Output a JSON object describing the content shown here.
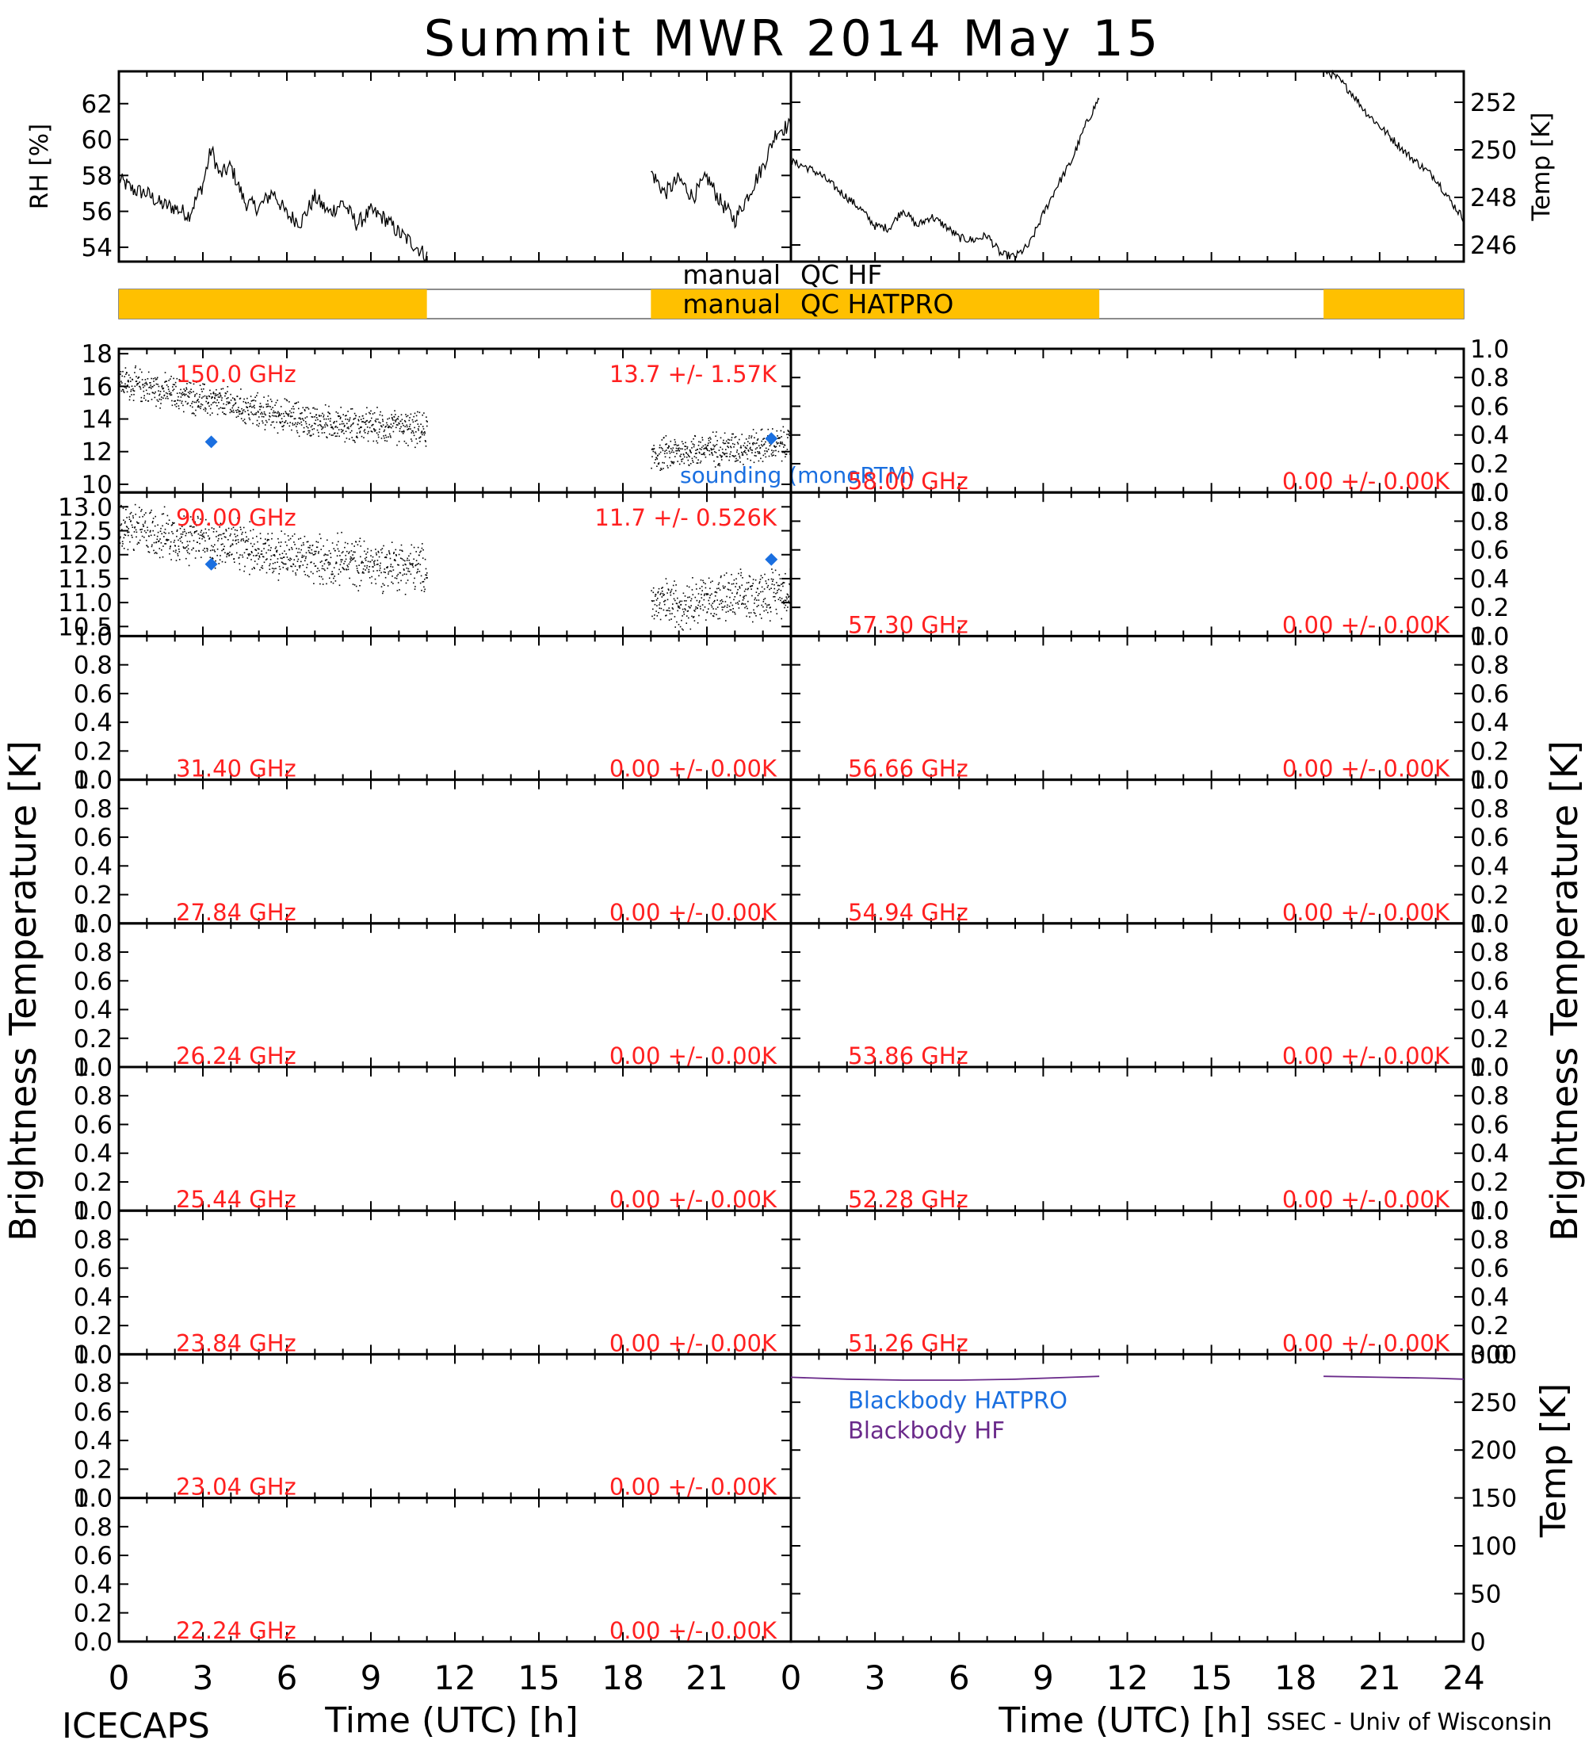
{
  "title": "Summit MWR 2014 May 15",
  "footer": {
    "left": "ICECAPS",
    "right": "SSEC - Univ of Wisconsin"
  },
  "qc": {
    "hf_label": "manual QC HF",
    "hatpro_label": "manual QC HATPRO",
    "color": "#FFC000"
  },
  "colors": {
    "trace": "#000000",
    "label": "#ff2020",
    "sounding": "#1a6fe0",
    "bb_hatpro": "#1a6fe0",
    "bb_hf": "#6a2a8a"
  },
  "chart_data": [
    {
      "type": "line",
      "panel": "rh",
      "ylabel": "RH [%]",
      "xlim": [
        0,
        24
      ],
      "ylim": [
        53.2,
        63.8
      ],
      "yticks": [
        "54",
        "56",
        "58",
        "60",
        "62"
      ],
      "x": [
        0,
        0.5,
        1,
        1.5,
        2,
        2.5,
        3,
        3.3,
        3.6,
        4,
        4.5,
        5,
        5.5,
        6,
        6.5,
        7,
        7.5,
        8,
        8.5,
        9,
        9.5,
        10,
        10.5,
        11,
        19,
        19.5,
        20,
        20.5,
        21,
        21.5,
        22,
        22.5,
        23,
        23.5,
        24
      ],
      "values": [
        57.8,
        57.2,
        57.0,
        56.4,
        56.2,
        55.8,
        57.5,
        59.5,
        58.0,
        58.5,
        56.5,
        56.2,
        57.1,
        55.8,
        55.4,
        56.8,
        55.9,
        56.5,
        55.3,
        56.0,
        55.6,
        54.8,
        54.2,
        53.5,
        58.2,
        57.0,
        57.8,
        56.8,
        57.9,
        56.5,
        55.5,
        57.0,
        58.5,
        60.5,
        60.8
      ]
    },
    {
      "type": "line",
      "panel": "temp",
      "ylabel": "Temp [K]",
      "xlim": [
        0,
        24
      ],
      "ylim": [
        245.3,
        253.3
      ],
      "yticks": [
        "246",
        "248",
        "250",
        "252"
      ],
      "x": [
        0,
        0.5,
        1,
        1.5,
        2,
        2.5,
        3,
        3.5,
        4,
        4.5,
        5,
        5.5,
        6,
        6.5,
        7,
        7.5,
        8,
        8.5,
        9,
        9.5,
        10,
        10.5,
        11,
        19,
        19.5,
        20,
        20.5,
        21,
        21.5,
        22,
        22.5,
        23,
        23.5,
        24
      ],
      "values": [
        249.5,
        249.3,
        249.0,
        248.5,
        248.0,
        247.5,
        246.8,
        246.7,
        247.5,
        246.8,
        247.2,
        246.8,
        246.3,
        246.2,
        246.4,
        245.6,
        245.5,
        246.0,
        247.3,
        248.5,
        249.5,
        251.0,
        252.2,
        253.4,
        253.0,
        252.4,
        251.6,
        251.0,
        250.4,
        249.8,
        249.3,
        248.8,
        247.9,
        247.1
      ]
    },
    {
      "type": "scatter",
      "panel": "left-1",
      "freq": "150.0 GHz",
      "stats": "13.7 +/-  1.57K",
      "annotation": "sounding (monoRTM)",
      "ylim": [
        9.5,
        18.3
      ],
      "yticks": [
        "10",
        "12",
        "14",
        "16",
        "18"
      ],
      "x": [
        0,
        1,
        2,
        3,
        4,
        5,
        6,
        7,
        8,
        9,
        10,
        11,
        19,
        20,
        21,
        22,
        23,
        24
      ],
      "values": [
        16.3,
        16.0,
        15.6,
        15.2,
        14.9,
        14.5,
        14.2,
        13.9,
        13.7,
        13.6,
        13.5,
        13.3,
        11.8,
        12.0,
        12.2,
        12.3,
        12.4,
        12.5
      ],
      "noise": 0.9,
      "sounding": {
        "x": [
          3.3,
          23.3
        ],
        "values": [
          12.6,
          12.8
        ]
      }
    },
    {
      "type": "scatter",
      "panel": "left-2",
      "freq": "90.00 GHz",
      "stats": "11.7 +/- 0.526K",
      "ylim": [
        10.3,
        13.3
      ],
      "yticks": [
        "10.5",
        "11.0",
        "11.5",
        "12.0",
        "12.5",
        "13.0"
      ],
      "x": [
        0,
        1,
        2,
        3,
        4,
        5,
        6,
        7,
        8,
        9,
        10,
        11,
        19,
        20,
        21,
        22,
        23,
        24
      ],
      "values": [
        12.6,
        12.5,
        12.4,
        12.3,
        12.2,
        12.1,
        12.0,
        11.9,
        11.9,
        11.8,
        11.8,
        11.7,
        11.0,
        11.0,
        11.1,
        11.1,
        11.2,
        11.3
      ],
      "noise": 0.45,
      "sounding": {
        "x": [
          3.3,
          23.3
        ],
        "values": [
          11.8,
          11.9
        ]
      }
    },
    {
      "panel": "left-3",
      "freq": "31.40 GHz",
      "stats": "0.00 +/-  0.00K"
    },
    {
      "panel": "left-4",
      "freq": "27.84 GHz",
      "stats": "0.00 +/-  0.00K"
    },
    {
      "panel": "left-5",
      "freq": "26.24 GHz",
      "stats": "0.00 +/-  0.00K"
    },
    {
      "panel": "left-6",
      "freq": "25.44 GHz",
      "stats": "0.00 +/-  0.00K"
    },
    {
      "panel": "left-7",
      "freq": "23.84 GHz",
      "stats": "0.00 +/-  0.00K"
    },
    {
      "panel": "left-8",
      "freq": "23.04 GHz",
      "stats": "0.00 +/-  0.00K"
    },
    {
      "panel": "left-9",
      "freq": "22.24 GHz",
      "stats": "0.00 +/-  0.00K"
    },
    {
      "panel": "right-1",
      "freq": "58.00 GHz",
      "stats": "0.00 +/-  0.00K"
    },
    {
      "panel": "right-2",
      "freq": "57.30 GHz",
      "stats": "0.00 +/-  0.00K"
    },
    {
      "panel": "right-3",
      "freq": "56.66 GHz",
      "stats": "0.00 +/-  0.00K"
    },
    {
      "panel": "right-4",
      "freq": "54.94 GHz",
      "stats": "0.00 +/-  0.00K"
    },
    {
      "panel": "right-5",
      "freq": "53.86 GHz",
      "stats": "0.00 +/-  0.00K"
    },
    {
      "panel": "right-6",
      "freq": "52.28 GHz",
      "stats": "0.00 +/-  0.00K"
    },
    {
      "panel": "right-7",
      "freq": "51.26 GHz",
      "stats": "0.00 +/-  0.00K"
    },
    {
      "type": "line",
      "panel": "blackbody",
      "ylabel": "Temp [K]",
      "ylim": [
        0,
        300
      ],
      "yticks": [
        "0",
        "50",
        "100",
        "150",
        "200",
        "250",
        "300"
      ],
      "series": [
        {
          "name": "Blackbody HATPRO",
          "x": [
            0,
            24
          ],
          "values": [
            0,
            0
          ]
        },
        {
          "name": "Blackbody HF",
          "x": [
            0,
            2,
            4,
            6,
            8,
            10,
            11,
            19,
            21,
            23,
            24
          ],
          "values": [
            276,
            274,
            273,
            273,
            274,
            276,
            277,
            277,
            276,
            275,
            274
          ]
        }
      ]
    }
  ],
  "axes": {
    "empty_yticks": [
      "0.0",
      "0.2",
      "0.4",
      "0.6",
      "0.8",
      "1.0"
    ],
    "xticks": [
      "0",
      "3",
      "6",
      "9",
      "12",
      "15",
      "18",
      "21"
    ],
    "xticks_right": [
      "0",
      "3",
      "6",
      "9",
      "12",
      "15",
      "18",
      "21",
      "24"
    ],
    "xlabel": "Time (UTC) [h]",
    "ylabel_tb": "Brightness Temperature [K]"
  }
}
